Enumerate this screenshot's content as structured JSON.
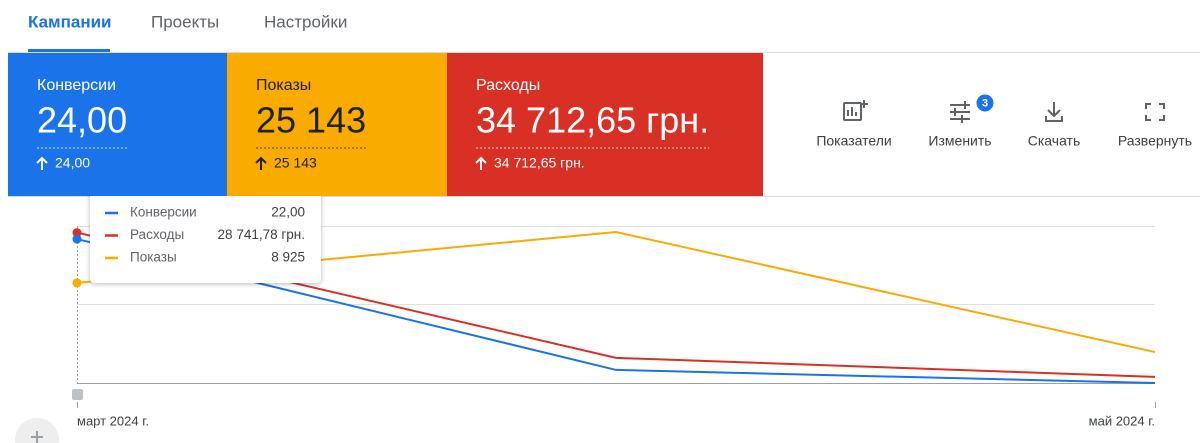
{
  "tabs": [
    {
      "label": "Кампании",
      "active": true
    },
    {
      "label": "Проекты"
    },
    {
      "label": "Настройки"
    }
  ],
  "metrics": [
    {
      "name": "Конверсии",
      "value": "24,00",
      "change": "24,00",
      "color": "#1a73e8",
      "text_color": "#ffffff"
    },
    {
      "name": "Показы",
      "value": "25 143",
      "change": "25 143",
      "color": "#f9ab00",
      "text_color": "#202124"
    },
    {
      "name": "Расходы",
      "value": "34 712,65 грн.",
      "change": "34 712,65 грн.",
      "color": "#d93025",
      "text_color": "#ffffff"
    }
  ],
  "toolbar": [
    {
      "label": "Показатели"
    },
    {
      "label": "Изменить",
      "badge": 3
    },
    {
      "label": "Скачать"
    },
    {
      "label": "Развернуть"
    }
  ],
  "chart_data": {
    "type": "line",
    "categories": [
      "март 2024 г.",
      null,
      "май 2024 г."
    ],
    "grid": true,
    "series": [
      {
        "name": "Конверсии",
        "color": "#1a73e8",
        "values": [
          22,
          2,
          0
        ],
        "value_labels": [
          "22,00",
          null,
          null
        ],
        "ylim": [
          0,
          24
        ]
      },
      {
        "name": "Расходы",
        "color": "#d93025",
        "values": [
          28741.78,
          4800,
          1170.87
        ],
        "value_labels": [
          "28 741,78 грн.",
          null,
          null
        ],
        "ylim": [
          0,
          30000
        ]
      },
      {
        "name": "Показы",
        "color": "#f9ab00",
        "values": [
          8925,
          13460,
          2758
        ],
        "value_labels": [
          "8 925",
          null,
          null
        ],
        "ylim": [
          0,
          14000
        ]
      }
    ]
  }
}
